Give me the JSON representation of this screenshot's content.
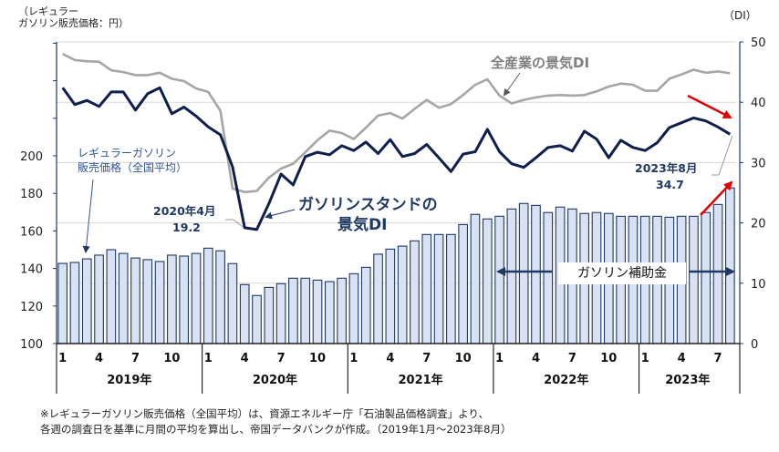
{
  "left_unit_label": "（レギュラー\nガソリン販売価格：円）",
  "right_unit_label": "（DI）",
  "footnote": "※レギュラーガソリン販売価格（全国平均）は、資源エネルギー庁「石油製品価格調査」より、\n各週の調査日を基準に月間の平均を算出し、帝国データバンクが作成。（2019年1月～2023年8月）",
  "colors": {
    "gs_di": "#0f1f4d",
    "all_di": "#a6a6a6",
    "bar_fill": "#d9e2f3",
    "bar_stroke": "#1f3864",
    "grid": "#d9d9d9",
    "axis": "#1f3864",
    "highlight_arrow": "#e00000"
  },
  "annotations": {
    "all_di_label": "全産業の景気DI",
    "gs_di_label_1": "ガソリンスタンドの",
    "gs_di_label_2": "景気DI",
    "price_label_1": "レギュラーガソリン",
    "price_label_2": "販売価格（全国平均）",
    "min_point_date": "2020年4月",
    "min_point_value": "19.2",
    "last_point_date": "2023年8月",
    "last_point_value": "34.7",
    "subsidy_label": "ガソリン補助金"
  },
  "chart_data": {
    "type": "bar+line",
    "title": "",
    "x_months": [
      "1",
      "",
      "",
      "4",
      "",
      "",
      "7",
      "",
      "",
      "10",
      "",
      "",
      "1",
      "",
      "",
      "4",
      "",
      "",
      "7",
      "",
      "",
      "10",
      "",
      "",
      "1",
      "",
      "",
      "4",
      "",
      "",
      "7",
      "",
      "",
      "10",
      "",
      "",
      "1",
      "",
      "",
      "4",
      "",
      "",
      "7",
      "",
      "",
      "10",
      "",
      "",
      "1",
      "",
      "",
      "4",
      "",
      "",
      "7",
      ""
    ],
    "x_years": [
      "2019年",
      "2020年",
      "2021年",
      "2022年",
      "2023年"
    ],
    "y_left": {
      "label": "レギュラーガソリン販売価格：円",
      "range": [
        100,
        200
      ],
      "ticks": [
        100,
        120,
        140,
        160,
        180,
        200
      ]
    },
    "y_right": {
      "label": "DI",
      "range": [
        0,
        50
      ],
      "ticks": [
        0,
        10,
        20,
        30,
        40,
        50
      ]
    },
    "series": [
      {
        "name": "レギュラーガソリン販売価格（全国平均）",
        "type": "bar",
        "axis": "left",
        "values": [
          142.7,
          143.2,
          145.1,
          147.1,
          150.0,
          148.0,
          145.6,
          144.7,
          143.7,
          147.1,
          146.6,
          148.0,
          150.8,
          149.4,
          142.6,
          131.4,
          125.6,
          129.9,
          131.9,
          134.8,
          134.8,
          133.8,
          133.0,
          134.8,
          137.2,
          140.6,
          147.6,
          150.3,
          151.9,
          154.7,
          158.1,
          158.1,
          158.1,
          163.4,
          168.8,
          166.4,
          167.8,
          171.7,
          174.6,
          173.6,
          169.8,
          172.7,
          171.7,
          169.3,
          169.8,
          169.3,
          167.8,
          167.8,
          167.8,
          167.8,
          167.3,
          167.8,
          167.8,
          169.8,
          174.1,
          182.9
        ]
      },
      {
        "name": "全産業の景気DI",
        "type": "line",
        "axis": "right",
        "values": [
          48.0,
          47.0,
          46.8,
          46.7,
          45.3,
          45.0,
          44.5,
          44.5,
          44.9,
          43.9,
          43.5,
          42.3,
          41.7,
          38.6,
          25.7,
          25.1,
          25.3,
          27.5,
          29.0,
          29.8,
          31.7,
          33.7,
          35.3,
          34.9,
          33.9,
          35.8,
          37.8,
          38.2,
          37.3,
          38.9,
          40.4,
          39.1,
          39.7,
          41.2,
          42.9,
          43.8,
          41.1,
          39.8,
          40.4,
          40.8,
          41.1,
          41.2,
          41.1,
          41.2,
          41.8,
          42.6,
          43.1,
          42.9,
          41.9,
          41.9,
          43.9,
          44.6,
          45.4,
          44.9,
          45.1,
          44.8
        ]
      },
      {
        "name": "ガソリンスタンドの景気DI",
        "type": "line",
        "axis": "right",
        "values": [
          42.4,
          39.6,
          40.3,
          39.3,
          41.7,
          41.7,
          38.7,
          41.4,
          42.4,
          38.1,
          39.2,
          37.7,
          35.9,
          34.6,
          29.3,
          19.2,
          18.9,
          23.2,
          28.1,
          26.3,
          31.0,
          31.7,
          31.3,
          32.8,
          32.0,
          33.4,
          31.5,
          33.8,
          31.0,
          31.5,
          33.0,
          30.8,
          28.5,
          31.4,
          31.8,
          35.5,
          31.8,
          29.8,
          29.2,
          30.8,
          32.5,
          32.8,
          31.9,
          35.2,
          33.9,
          30.8,
          33.7,
          32.5,
          32.0,
          33.3,
          35.8,
          36.6,
          37.4,
          36.9,
          35.9,
          34.7
        ]
      }
    ],
    "subsidy_period": {
      "label": "ガソリン補助金",
      "start_index": 36,
      "end_index": 55
    },
    "grid": "horizontal",
    "legend": "inline annotations"
  }
}
